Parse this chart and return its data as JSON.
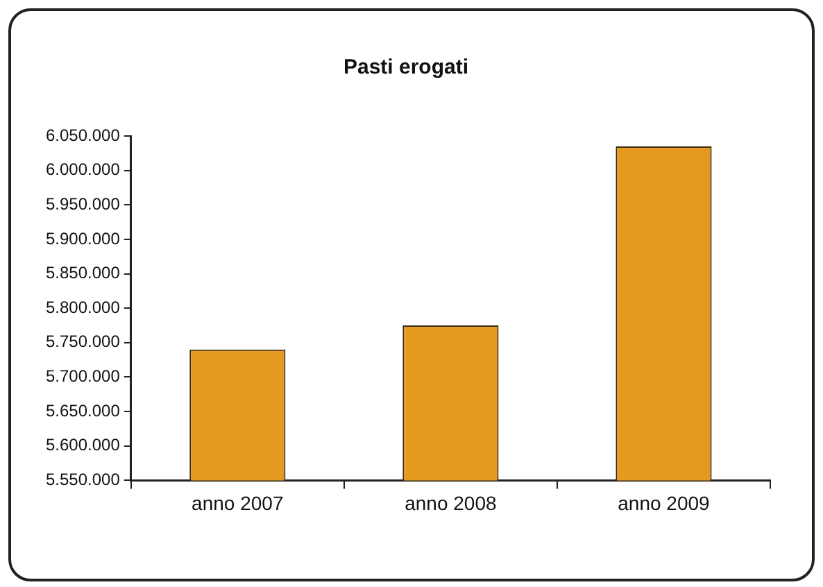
{
  "chart_data": {
    "type": "bar",
    "title": "Pasti erogati",
    "categories": [
      "anno 2007",
      "anno 2008",
      "anno 2009"
    ],
    "values": [
      5740000,
      5775000,
      6035000
    ],
    "color": "#e39a1f",
    "ylim": [
      5550000,
      6050000
    ],
    "yticks": [
      {
        "value": 5550000,
        "label": "5.550.000"
      },
      {
        "value": 5600000,
        "label": "5.600.000"
      },
      {
        "value": 5650000,
        "label": "5.650.000"
      },
      {
        "value": 5700000,
        "label": "5.700.000"
      },
      {
        "value": 5750000,
        "label": "5.750.000"
      },
      {
        "value": 5800000,
        "label": "5.800.000"
      },
      {
        "value": 5850000,
        "label": "5.850.000"
      },
      {
        "value": 5900000,
        "label": "5.900.000"
      },
      {
        "value": 5950000,
        "label": "5.950.000"
      },
      {
        "value": 6000000,
        "label": "6.000.000"
      },
      {
        "value": 6050000,
        "label": "6.050.000"
      }
    ],
    "grid": false,
    "legend": false
  }
}
